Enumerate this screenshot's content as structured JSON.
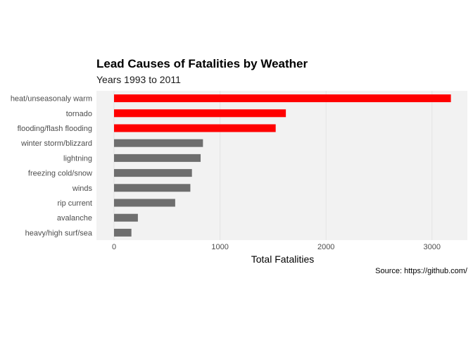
{
  "chart_data": {
    "type": "bar",
    "orientation": "horizontal",
    "title": "Lead Causes of Fatalities by Weather",
    "subtitle": "Years 1993 to 2011",
    "caption": "Source: https://github.com/",
    "xlabel": "Total Fatalities",
    "ylabel": "",
    "xlim": [
      0,
      3300
    ],
    "x_ticks": [
      0,
      1000,
      2000,
      3000
    ],
    "grid": true,
    "legend": "none",
    "colors": {
      "highlight": "#ff0000",
      "default": "#6e6e6e",
      "panel": "#f2f2f2",
      "grid": "#e3e3e3"
    },
    "categories": [
      "heat/unseasonaly warm",
      "tornado",
      "flooding/flash flooding",
      "winter storm/blizzard",
      "lightning",
      "freezing cold/snow",
      "winds",
      "rip current",
      "avalanche",
      "heavy/high surf/sea"
    ],
    "values": [
      3178,
      1621,
      1525,
      839,
      817,
      735,
      720,
      577,
      225,
      164
    ],
    "highlighted": [
      true,
      true,
      true,
      false,
      false,
      false,
      false,
      false,
      false,
      false
    ]
  }
}
